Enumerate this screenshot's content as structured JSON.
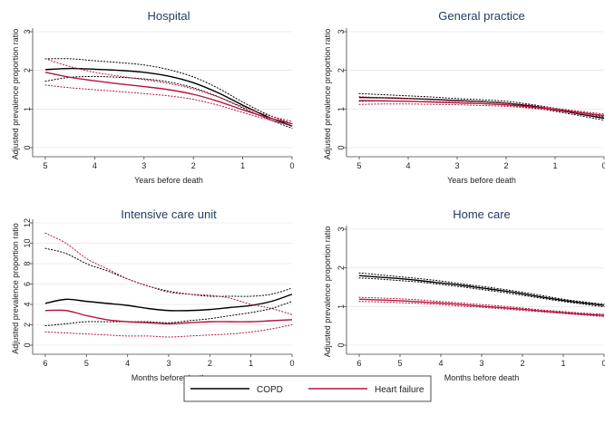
{
  "colors": {
    "copd": "#000000",
    "heart_failure": "#b5143c",
    "title": "#1f3a5f"
  },
  "legend": {
    "placement": "bottom-center",
    "items": [
      {
        "name": "COPD",
        "color": "#000000"
      },
      {
        "name": "Heart failure",
        "color": "#b5143c"
      }
    ]
  },
  "chart_data": [
    {
      "type": "line",
      "title": "Hospital",
      "xlabel": "Years before death",
      "ylabel": "Adjusted prevalence proportion ratio",
      "xlim": [
        5,
        0
      ],
      "ylim": [
        0,
        3
      ],
      "xticks": [
        5,
        4,
        3,
        2,
        1,
        0
      ],
      "yticks": [
        0,
        1,
        2,
        3
      ],
      "grid": true,
      "x": [
        5,
        4.5,
        4,
        3.5,
        3,
        2.5,
        2,
        1.5,
        1,
        0.5,
        0
      ],
      "series": [
        {
          "name": "COPD",
          "values": [
            2.02,
            2.05,
            2.03,
            2.0,
            1.95,
            1.85,
            1.68,
            1.42,
            1.1,
            0.8,
            0.56
          ],
          "ci_lower": [
            1.72,
            1.82,
            1.84,
            1.82,
            1.78,
            1.7,
            1.55,
            1.32,
            1.03,
            0.75,
            0.5
          ],
          "ci_upper": [
            2.3,
            2.3,
            2.25,
            2.2,
            2.14,
            2.02,
            1.83,
            1.54,
            1.18,
            0.86,
            0.62
          ]
        },
        {
          "name": "Heart failure",
          "values": [
            1.95,
            1.82,
            1.73,
            1.65,
            1.58,
            1.5,
            1.38,
            1.2,
            0.98,
            0.78,
            0.62
          ],
          "ci_lower": [
            1.62,
            1.55,
            1.5,
            1.45,
            1.4,
            1.34,
            1.25,
            1.1,
            0.91,
            0.73,
            0.57
          ],
          "ci_upper": [
            2.3,
            2.1,
            1.95,
            1.85,
            1.76,
            1.66,
            1.52,
            1.31,
            1.06,
            0.84,
            0.68
          ]
        }
      ]
    },
    {
      "type": "line",
      "title": "General practice",
      "xlabel": "Years before death",
      "ylabel": "Adjusted prevalence proportion ratio",
      "xlim": [
        5,
        0
      ],
      "ylim": [
        0,
        3
      ],
      "xticks": [
        5,
        4,
        3,
        2,
        1,
        0
      ],
      "yticks": [
        0,
        1,
        2,
        3
      ],
      "grid": true,
      "x": [
        5,
        4.5,
        4,
        3.5,
        3,
        2.5,
        2,
        1.5,
        1,
        0.5,
        0
      ],
      "series": [
        {
          "name": "COPD",
          "values": [
            1.3,
            1.29,
            1.27,
            1.25,
            1.22,
            1.19,
            1.15,
            1.08,
            0.98,
            0.87,
            0.76
          ],
          "ci_lower": [
            1.2,
            1.21,
            1.2,
            1.19,
            1.17,
            1.14,
            1.1,
            1.04,
            0.94,
            0.83,
            0.71
          ],
          "ci_upper": [
            1.4,
            1.37,
            1.34,
            1.31,
            1.27,
            1.24,
            1.2,
            1.12,
            1.02,
            0.91,
            0.81
          ]
        },
        {
          "name": "Heart failure",
          "values": [
            1.22,
            1.21,
            1.2,
            1.18,
            1.16,
            1.14,
            1.11,
            1.06,
            0.99,
            0.91,
            0.83
          ],
          "ci_lower": [
            1.12,
            1.13,
            1.13,
            1.12,
            1.11,
            1.09,
            1.07,
            1.02,
            0.96,
            0.88,
            0.79
          ],
          "ci_upper": [
            1.32,
            1.29,
            1.27,
            1.24,
            1.21,
            1.19,
            1.15,
            1.1,
            1.02,
            0.94,
            0.87
          ]
        }
      ]
    },
    {
      "type": "line",
      "title": "Intensive care unit",
      "xlabel": "Months before death",
      "ylabel": "Adjusted prevalence proportion ratio",
      "xlim": [
        6,
        0
      ],
      "ylim": [
        0,
        12
      ],
      "xticks": [
        6,
        5,
        4,
        3,
        2,
        1,
        0
      ],
      "yticks": [
        0,
        2,
        4,
        6,
        8,
        10,
        12
      ],
      "grid": true,
      "x": [
        6,
        5.5,
        5,
        4.5,
        4,
        3.5,
        3,
        2.5,
        2,
        1.5,
        1,
        0.5,
        0
      ],
      "series": [
        {
          "name": "COPD",
          "values": [
            4.1,
            4.5,
            4.3,
            4.1,
            3.9,
            3.6,
            3.4,
            3.4,
            3.5,
            3.7,
            3.9,
            4.3,
            5.0
          ],
          "ci_lower": [
            1.9,
            2.1,
            2.3,
            2.3,
            2.3,
            2.3,
            2.2,
            2.4,
            2.6,
            2.9,
            3.2,
            3.6,
            4.3
          ],
          "ci_upper": [
            9.5,
            9.0,
            8.0,
            7.3,
            6.5,
            5.8,
            5.3,
            5.0,
            4.8,
            4.8,
            4.8,
            5.0,
            5.6
          ]
        },
        {
          "name": "Heart failure",
          "values": [
            3.4,
            3.4,
            2.9,
            2.5,
            2.3,
            2.2,
            2.1,
            2.2,
            2.3,
            2.3,
            2.3,
            2.4,
            2.5
          ],
          "ci_lower": [
            1.3,
            1.2,
            1.1,
            1.0,
            0.9,
            0.9,
            0.8,
            0.9,
            1.0,
            1.1,
            1.3,
            1.6,
            2.0
          ],
          "ci_upper": [
            11.0,
            10.0,
            8.5,
            7.5,
            6.5,
            5.8,
            5.2,
            5.0,
            4.9,
            4.6,
            4.0,
            3.6,
            3.0
          ]
        }
      ]
    },
    {
      "type": "line",
      "title": "Home care",
      "xlabel": "Months before death",
      "ylabel": "Adjusted prevalence proportion ratio",
      "xlim": [
        6,
        0
      ],
      "ylim": [
        0,
        3
      ],
      "xticks": [
        6,
        5,
        4,
        3,
        2,
        1,
        0
      ],
      "yticks": [
        0,
        1,
        2,
        3
      ],
      "grid": true,
      "x": [
        6,
        5.5,
        5,
        4.5,
        4,
        3.5,
        3,
        2.5,
        2,
        1.5,
        1,
        0.5,
        0
      ],
      "series": [
        {
          "name": "COPD",
          "values": [
            1.8,
            1.76,
            1.72,
            1.67,
            1.61,
            1.55,
            1.48,
            1.41,
            1.33,
            1.24,
            1.16,
            1.09,
            1.03
          ],
          "ci_lower": [
            1.74,
            1.71,
            1.67,
            1.63,
            1.57,
            1.51,
            1.44,
            1.37,
            1.29,
            1.21,
            1.13,
            1.06,
            0.99
          ],
          "ci_upper": [
            1.87,
            1.82,
            1.77,
            1.72,
            1.66,
            1.59,
            1.52,
            1.45,
            1.37,
            1.28,
            1.19,
            1.12,
            1.06
          ]
        },
        {
          "name": "Heart failure",
          "values": [
            1.19,
            1.17,
            1.15,
            1.12,
            1.09,
            1.05,
            1.01,
            0.97,
            0.93,
            0.88,
            0.84,
            0.8,
            0.77
          ],
          "ci_lower": [
            1.13,
            1.12,
            1.1,
            1.08,
            1.05,
            1.01,
            0.98,
            0.94,
            0.9,
            0.86,
            0.82,
            0.78,
            0.74
          ],
          "ci_upper": [
            1.24,
            1.22,
            1.2,
            1.17,
            1.13,
            1.09,
            1.05,
            1.01,
            0.96,
            0.91,
            0.87,
            0.83,
            0.8
          ]
        }
      ]
    }
  ]
}
